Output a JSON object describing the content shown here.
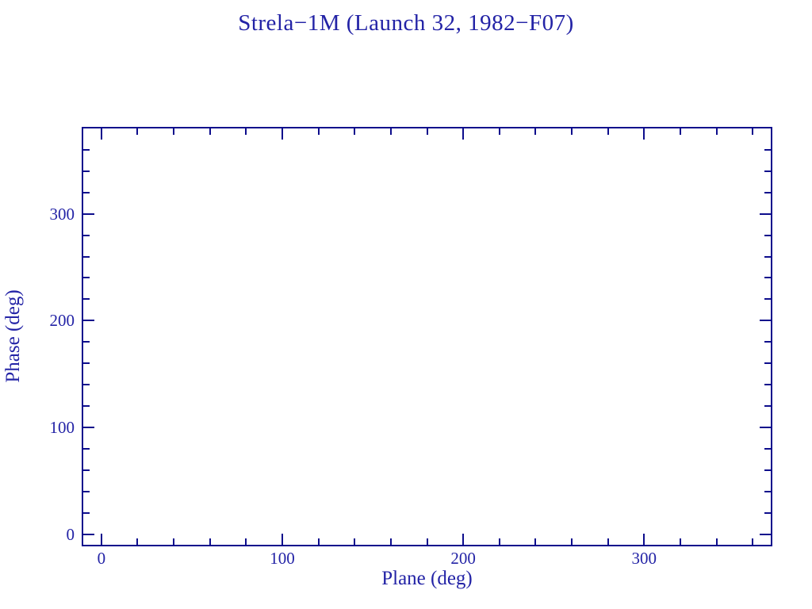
{
  "colors": {
    "background": "#ffffff",
    "line": "#0d0d8c",
    "text": "#2323a6"
  },
  "chart_data": {
    "type": "scatter",
    "title": "Strela−1M (Launch 32, 1982−F07)",
    "xlabel": "Plane (deg)",
    "ylabel": "Phase (deg)",
    "xlim": [
      -10,
      370
    ],
    "ylim": [
      -10,
      380
    ],
    "x_major_ticks": [
      0,
      100,
      200,
      300
    ],
    "x_tick_labels": [
      "0",
      "100",
      "200",
      "300"
    ],
    "y_major_ticks": [
      0,
      100,
      200,
      300
    ],
    "y_tick_labels": [
      "0",
      "100",
      "200",
      "300"
    ],
    "minor_tick_step_x": 20,
    "minor_tick_step_y": 20,
    "tick_style": "inward on all four sides",
    "grid": false,
    "legend": null,
    "series": []
  }
}
